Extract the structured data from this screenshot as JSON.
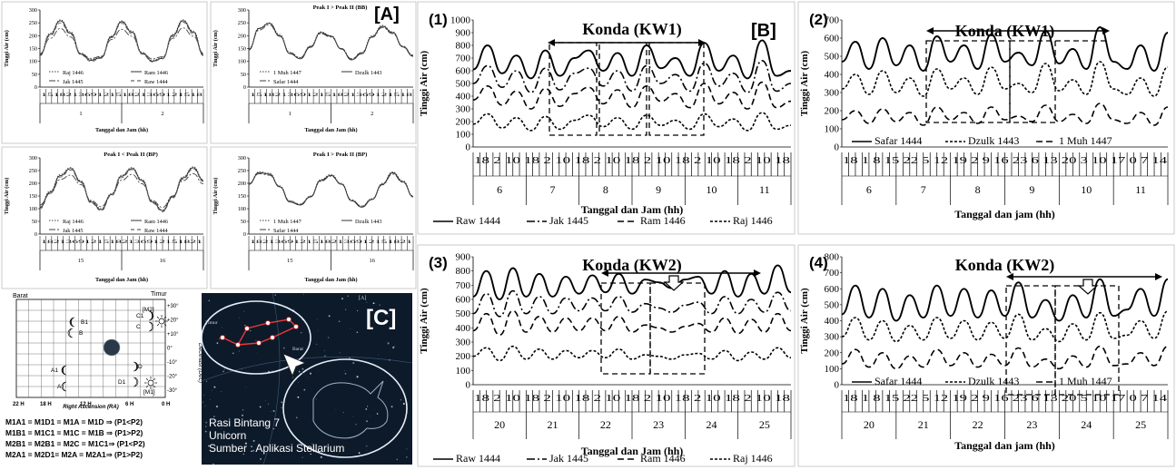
{
  "panel_labels": {
    "A": "[A]",
    "B": "[B]",
    "C": "[C]"
  },
  "chart_data": [
    {
      "id": "A1",
      "type": "line",
      "title": "",
      "xlabel": "Tanggal dan Jam (hh)",
      "ylabel": "Tinggi Air (cm)",
      "ylim": [
        0,
        300
      ],
      "yticks": [
        0,
        50,
        100,
        150,
        200,
        250,
        300
      ],
      "day_labels": [
        "1",
        "2"
      ],
      "tick_text": "15182136912151821369121518",
      "legend": [
        {
          "name": "Raj 1446",
          "dash": "1.5,1.5"
        },
        {
          "name": "Ram 1446",
          "dash": ""
        },
        {
          "name": "Jak 1445",
          "dash": "7,2,2,2"
        },
        {
          "name": "Raw 1444",
          "dash": "4,3"
        }
      ],
      "series": [
        {
          "name": "Raj 1446",
          "values": [
            128,
            210,
            262,
            215,
            132,
            108,
            118,
            200,
            258,
            218,
            135,
            105,
            115,
            205,
            262,
            218,
            130
          ]
        },
        {
          "name": "Ram 1446",
          "values": [
            125,
            205,
            258,
            210,
            128,
            104,
            115,
            196,
            254,
            214,
            131,
            101,
            112,
            201,
            258,
            214,
            126
          ]
        },
        {
          "name": "Jak 1445",
          "values": [
            130,
            190,
            228,
            195,
            130,
            112,
            120,
            185,
            225,
            198,
            133,
            110,
            118,
            190,
            230,
            198,
            132
          ]
        },
        {
          "name": "Raw 1444",
          "values": [
            122,
            200,
            250,
            205,
            125,
            100,
            112,
            192,
            248,
            208,
            128,
            98,
            110,
            196,
            252,
            208,
            122
          ]
        }
      ]
    },
    {
      "id": "A2",
      "type": "line",
      "title": "Peak I > Peak II (BB)",
      "xlabel": "Tanggal dan Jam (hh)",
      "ylabel": "Tinggi Air (cm)",
      "ylim": [
        0,
        300
      ],
      "yticks": [
        0,
        50,
        100,
        150,
        200,
        250,
        300
      ],
      "day_labels": [
        "1",
        "2"
      ],
      "tick_text": "15182136912151821369121518",
      "legend": [
        {
          "name": "1 Muh 1447",
          "dash": "1.5,1.5"
        },
        {
          "name": "Dzulk 1443",
          "dash": ""
        },
        {
          "name": "Safar 1444",
          "dash": "7,2,2,2"
        }
      ],
      "series": [
        {
          "name": "1 Muh 1447",
          "values": [
            150,
            230,
            250,
            205,
            135,
            115,
            160,
            215,
            200,
            150,
            110,
            135,
            200,
            240,
            215,
            160,
            125
          ]
        },
        {
          "name": "Dzulk 1443",
          "values": [
            145,
            228,
            248,
            200,
            130,
            110,
            155,
            212,
            198,
            148,
            106,
            130,
            196,
            236,
            212,
            156,
            120
          ]
        },
        {
          "name": "Safar 1444",
          "values": [
            148,
            222,
            242,
            198,
            134,
            114,
            158,
            208,
            195,
            150,
            110,
            134,
            194,
            232,
            208,
            158,
            124
          ]
        }
      ]
    },
    {
      "id": "A3",
      "type": "line",
      "title": "Peak I < Peak II (BP)",
      "xlabel": "Tanggal dan Jam (hh)",
      "ylabel": "Tinggi Air (cm)",
      "ylim": [
        0,
        300
      ],
      "yticks": [
        0,
        50,
        100,
        150,
        200,
        250,
        300
      ],
      "day_labels": [
        "15",
        "16"
      ],
      "tick_text": "18213691215182136912151821",
      "legend": [
        {
          "name": "Raj 1446",
          "dash": "1.5,1.5"
        },
        {
          "name": "Ram 1446",
          "dash": ""
        },
        {
          "name": "Jak 1445",
          "dash": "7,2,2,2"
        },
        {
          "name": "Raw 1444",
          "dash": "4,3"
        }
      ],
      "series": [
        {
          "name": "Raj 1446",
          "values": [
            110,
            170,
            235,
            262,
            210,
            130,
            100,
            160,
            232,
            262,
            215,
            130,
            95,
            150,
            225,
            265,
            215
          ]
        },
        {
          "name": "Ram 1446",
          "values": [
            105,
            165,
            230,
            258,
            206,
            126,
            96,
            156,
            228,
            258,
            211,
            126,
            92,
            146,
            221,
            261,
            211
          ]
        },
        {
          "name": "Jak 1445",
          "values": [
            115,
            160,
            215,
            232,
            195,
            132,
            108,
            155,
            212,
            235,
            198,
            132,
            105,
            150,
            210,
            238,
            198
          ]
        },
        {
          "name": "Raw 1444",
          "values": [
            100,
            160,
            225,
            252,
            202,
            122,
            92,
            152,
            222,
            254,
            207,
            122,
            88,
            142,
            216,
            256,
            207
          ]
        }
      ]
    },
    {
      "id": "A4",
      "type": "line",
      "title": "Peak I > Peak II (BP)",
      "xlabel": "Tanggal dan Jam (hh)",
      "ylabel": "Tinggi Air (cm)",
      "ylim": [
        0,
        300
      ],
      "yticks": [
        0,
        50,
        100,
        150,
        200,
        250,
        300
      ],
      "day_labels": [
        "15",
        "16"
      ],
      "tick_text": "18213691215182136912151821",
      "legend": [
        {
          "name": "1 Muh 1447",
          "dash": "1.5,1.5"
        },
        {
          "name": "Dzulk 1443",
          "dash": ""
        },
        {
          "name": "Safar 1444",
          "dash": "7,2,2,2"
        }
      ],
      "series": [
        {
          "name": "1 Muh 1447",
          "values": [
            200,
            245,
            240,
            190,
            130,
            118,
            150,
            215,
            235,
            200,
            135,
            110,
            140,
            200,
            245,
            210,
            150
          ]
        },
        {
          "name": "Dzulk 1443",
          "values": [
            196,
            242,
            236,
            186,
            126,
            114,
            146,
            211,
            231,
            196,
            131,
            106,
            136,
            196,
            241,
            206,
            146
          ]
        },
        {
          "name": "Safar 1444",
          "values": [
            198,
            238,
            232,
            188,
            130,
            118,
            148,
            208,
            228,
            198,
            134,
            110,
            138,
            194,
            236,
            204,
            148
          ]
        }
      ]
    },
    {
      "id": "B1",
      "type": "line",
      "num": "(1)",
      "title": "Konda (KW1)",
      "xlabel": "Tanggal dan Jam (hh)",
      "ylabel": "Tinggi Air (cm)",
      "ylim": [
        0,
        1000
      ],
      "yticks": [
        0,
        100,
        200,
        300,
        400,
        500,
        600,
        700,
        800,
        900,
        1000
      ],
      "day_labels": [
        "6",
        "7",
        "8",
        "9",
        "10",
        "11"
      ],
      "tick_text": "18 2 10 18 2 10 18 2 10 18 2 10 18 2 10 18 2 10 18",
      "legend": [
        {
          "name": "Raw 1444",
          "dash": ""
        },
        {
          "name": "Jak 1445",
          "dash": "9,3,2,3"
        },
        {
          "name": "Ram 1446",
          "dash": "7,4"
        },
        {
          "name": "Raj 1446",
          "dash": "3,2"
        }
      ],
      "series": [
        {
          "name": "Raw 1444",
          "values": [
            610,
            800,
            580,
            720,
            540,
            760,
            560,
            700,
            760,
            600,
            740,
            560,
            800,
            620,
            700,
            560,
            820,
            600,
            720,
            540,
            840,
            560,
            600
          ]
        },
        {
          "name": "Jak 1445",
          "values": [
            500,
            640,
            470,
            600,
            430,
            620,
            450,
            580,
            620,
            480,
            600,
            440,
            640,
            500,
            570,
            440,
            660,
            480,
            580,
            430,
            680,
            440,
            500
          ]
        },
        {
          "name": "Ram 1446",
          "values": [
            370,
            480,
            330,
            440,
            300,
            460,
            320,
            420,
            470,
            340,
            450,
            310,
            480,
            360,
            420,
            310,
            500,
            340,
            430,
            300,
            510,
            310,
            360
          ]
        },
        {
          "name": "Raj 1446",
          "values": [
            180,
            260,
            150,
            230,
            130,
            240,
            140,
            210,
            250,
            160,
            230,
            140,
            250,
            170,
            210,
            140,
            260,
            160,
            220,
            130,
            270,
            140,
            170
          ]
        }
      ]
    },
    {
      "id": "B2",
      "type": "line",
      "num": "(2)",
      "title": "Konda (KW1)",
      "xlabel": "Tanggal dan jam (hh)",
      "ylabel": "Tinggi Air (cm)",
      "ylim": [
        0,
        700
      ],
      "yticks": [
        0,
        100,
        200,
        300,
        400,
        500,
        600,
        700
      ],
      "day_labels": [
        "6",
        "7",
        "8",
        "9",
        "10",
        "11"
      ],
      "tick_text": "18 1 8 15 22 5 12 19 2 9 16 23 6 13 20 3 10 17 0 7 14",
      "legend": [
        {
          "name": "Safar 1444",
          "dash": ""
        },
        {
          "name": "Dzulk 1443",
          "dash": "3,2"
        },
        {
          "name": "1 Muh 1447",
          "dash": "7,4"
        }
      ],
      "series": [
        {
          "name": "Safar 1444",
          "values": [
            470,
            580,
            430,
            600,
            450,
            560,
            420,
            610,
            470,
            560,
            430,
            620,
            470,
            520,
            450,
            640,
            460,
            540,
            430,
            660,
            470,
            430,
            560,
            420,
            630
          ]
        },
        {
          "name": "Dzulk 1443",
          "values": [
            320,
            400,
            290,
            420,
            300,
            380,
            280,
            430,
            320,
            380,
            290,
            440,
            320,
            350,
            300,
            460,
            310,
            370,
            290,
            470,
            320,
            290,
            380,
            280,
            440
          ]
        },
        {
          "name": "1 Muh 1447",
          "values": [
            150,
            200,
            130,
            210,
            140,
            190,
            120,
            220,
            150,
            190,
            130,
            220,
            150,
            170,
            140,
            230,
            140,
            180,
            130,
            240,
            150,
            130,
            190,
            120,
            220
          ]
        }
      ]
    },
    {
      "id": "B3",
      "type": "line",
      "num": "(3)",
      "title": "Konda (KW2)",
      "xlabel": "Tanggal dan Jam (hh)",
      "ylabel": "Tinggi Air (cm)",
      "ylim": [
        0,
        900
      ],
      "yticks": [
        0,
        100,
        200,
        300,
        400,
        500,
        600,
        700,
        800,
        900
      ],
      "day_labels": [
        "20",
        "21",
        "22",
        "23",
        "24",
        "25"
      ],
      "tick_text": "18 2 10 18 2 10 18 2 10 18 2 10 18 2 10 18 2 10 18",
      "legend": [
        {
          "name": "Raw 1444",
          "dash": ""
        },
        {
          "name": "Jak 1445",
          "dash": "9,3,2,3"
        },
        {
          "name": "Ram 1446",
          "dash": "7,4"
        },
        {
          "name": "Raj 1446",
          "dash": "3,2"
        }
      ],
      "series": [
        {
          "name": "Raw 1444",
          "values": [
            620,
            800,
            600,
            820,
            620,
            780,
            620,
            760,
            640,
            770,
            650,
            780,
            640,
            740,
            720,
            680,
            740,
            760,
            640,
            800,
            620,
            780,
            640,
            840,
            650
          ]
        },
        {
          "name": "Jak 1445",
          "values": [
            500,
            640,
            480,
            660,
            500,
            620,
            500,
            610,
            520,
            610,
            520,
            620,
            510,
            570,
            540,
            510,
            560,
            580,
            500,
            620,
            500,
            600,
            510,
            650,
            520
          ]
        },
        {
          "name": "Ram 1446",
          "values": [
            380,
            500,
            350,
            520,
            370,
            480,
            370,
            470,
            380,
            470,
            380,
            480,
            370,
            420,
            400,
            370,
            410,
            430,
            370,
            470,
            360,
            460,
            370,
            500,
            380
          ]
        },
        {
          "name": "Raj 1446",
          "values": [
            200,
            260,
            170,
            270,
            180,
            250,
            180,
            240,
            190,
            240,
            190,
            250,
            180,
            210,
            200,
            180,
            210,
            220,
            180,
            240,
            170,
            230,
            180,
            260,
            190
          ]
        }
      ]
    },
    {
      "id": "B4",
      "type": "line",
      "num": "(4)",
      "title": "Konda (KW2)",
      "xlabel": "Tanggal dan jam (hh)",
      "ylabel": "Tinggi Air (cm)",
      "ylim": [
        0,
        800
      ],
      "yticks": [
        0,
        100,
        200,
        300,
        400,
        500,
        600,
        700,
        800
      ],
      "day_labels": [
        "20",
        "21",
        "22",
        "23",
        "24",
        "25"
      ],
      "tick_text": "18 1 8 15 22 5 12 19 2 9 16 23 6 13 20 5 10 17 0 7 14",
      "legend": [
        {
          "name": "Safar 1444",
          "dash": ""
        },
        {
          "name": "Dzulk 1443",
          "dash": "3,2"
        },
        {
          "name": "1 Muh 1447",
          "dash": "7,4"
        }
      ],
      "series": [
        {
          "name": "Safar 1444",
          "values": [
            440,
            620,
            420,
            600,
            400,
            560,
            420,
            620,
            430,
            600,
            420,
            590,
            430,
            640,
            420,
            530,
            400,
            560,
            420,
            660,
            430,
            470,
            600,
            430,
            660
          ]
        },
        {
          "name": "Dzulk 1443",
          "values": [
            300,
            420,
            280,
            400,
            270,
            370,
            280,
            420,
            290,
            400,
            280,
            390,
            290,
            440,
            280,
            350,
            270,
            380,
            280,
            450,
            290,
            310,
            400,
            290,
            460
          ]
        },
        {
          "name": "1 Muh 1447",
          "values": [
            130,
            220,
            110,
            200,
            100,
            180,
            110,
            220,
            120,
            200,
            110,
            190,
            120,
            230,
            110,
            160,
            100,
            180,
            110,
            240,
            120,
            130,
            200,
            120,
            240
          ]
        }
      ]
    }
  ],
  "sky_chart": {
    "barat": "Barat",
    "timur": "Timur",
    "dec_label": "Declinasi (Dec)",
    "ra_label": "Right Ascension (RA)",
    "dec_ticks": [
      "+30°",
      "+20°",
      "+10°",
      "0°",
      "-10°",
      "-20°",
      "-30°"
    ],
    "ra_ticks": [
      "22 H",
      "18 H",
      "12 H",
      "6 H",
      "0 H"
    ],
    "moon_labels": [
      "B1",
      "B",
      "C1",
      "C",
      "[M2]",
      "A1",
      "A",
      "D",
      "D1",
      "[M1]"
    ],
    "equations": [
      "M1A1 = M1D1 = M1A = M1D ⇒ (P1<P2)",
      "M1B1 = M1C1 = M1C = M1B ⇒ (P1>P2)",
      "M2B1 = M2B1 = M2C = M1C1⇒ (P1<P2)",
      "M2A1 = M2D1= M2A = M2A1⇒ (P1>P2)"
    ]
  },
  "photo": {
    "inset_tag": "[A]",
    "barat": "Barat",
    "timur": "Timur",
    "caption": [
      "Rasi Bintang 7",
      "Unicorn",
      "Sumber : Aplikasi Stellarium"
    ]
  }
}
